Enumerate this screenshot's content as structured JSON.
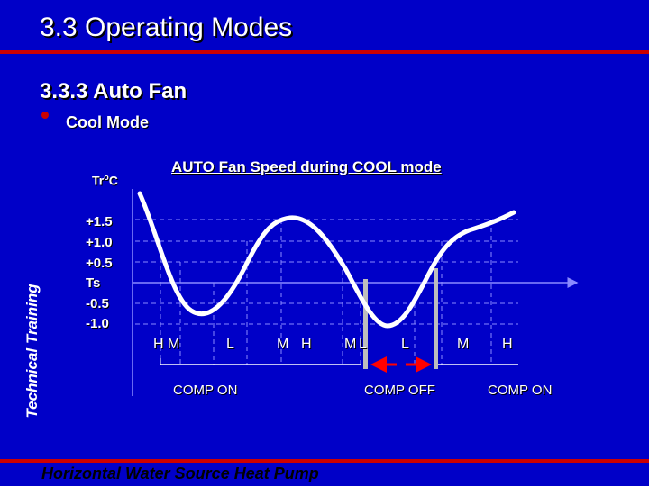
{
  "header": {
    "title": "3.3 Operating Modes",
    "section": "3.3.3 Auto Fan",
    "bullet": "Cool Mode"
  },
  "side_label": "Technical Training",
  "diagram": {
    "title": "AUTO Fan Speed during COOL mode",
    "y_axis_label": {
      "main": "Tr",
      "sup": "o",
      "unit": "C"
    },
    "y_ticks": [
      "+1.5",
      "+1.0",
      "+0.5",
      "Ts",
      "-0.5",
      "-1.0"
    ],
    "speed_labels": [
      "H",
      "M",
      "L",
      "M",
      "H",
      "M",
      "L",
      "L",
      "M",
      "H"
    ],
    "comp_labels": [
      "COMP ON",
      "COMP OFF",
      "COMP ON"
    ],
    "colors": {
      "background": "#0000c8",
      "accent": "#cc0000",
      "curve": "#ffffff",
      "grid": "#8a8aff",
      "bars": "#bdbdbd"
    }
  },
  "footer": "Horizontal Water Source Heat Pump"
}
